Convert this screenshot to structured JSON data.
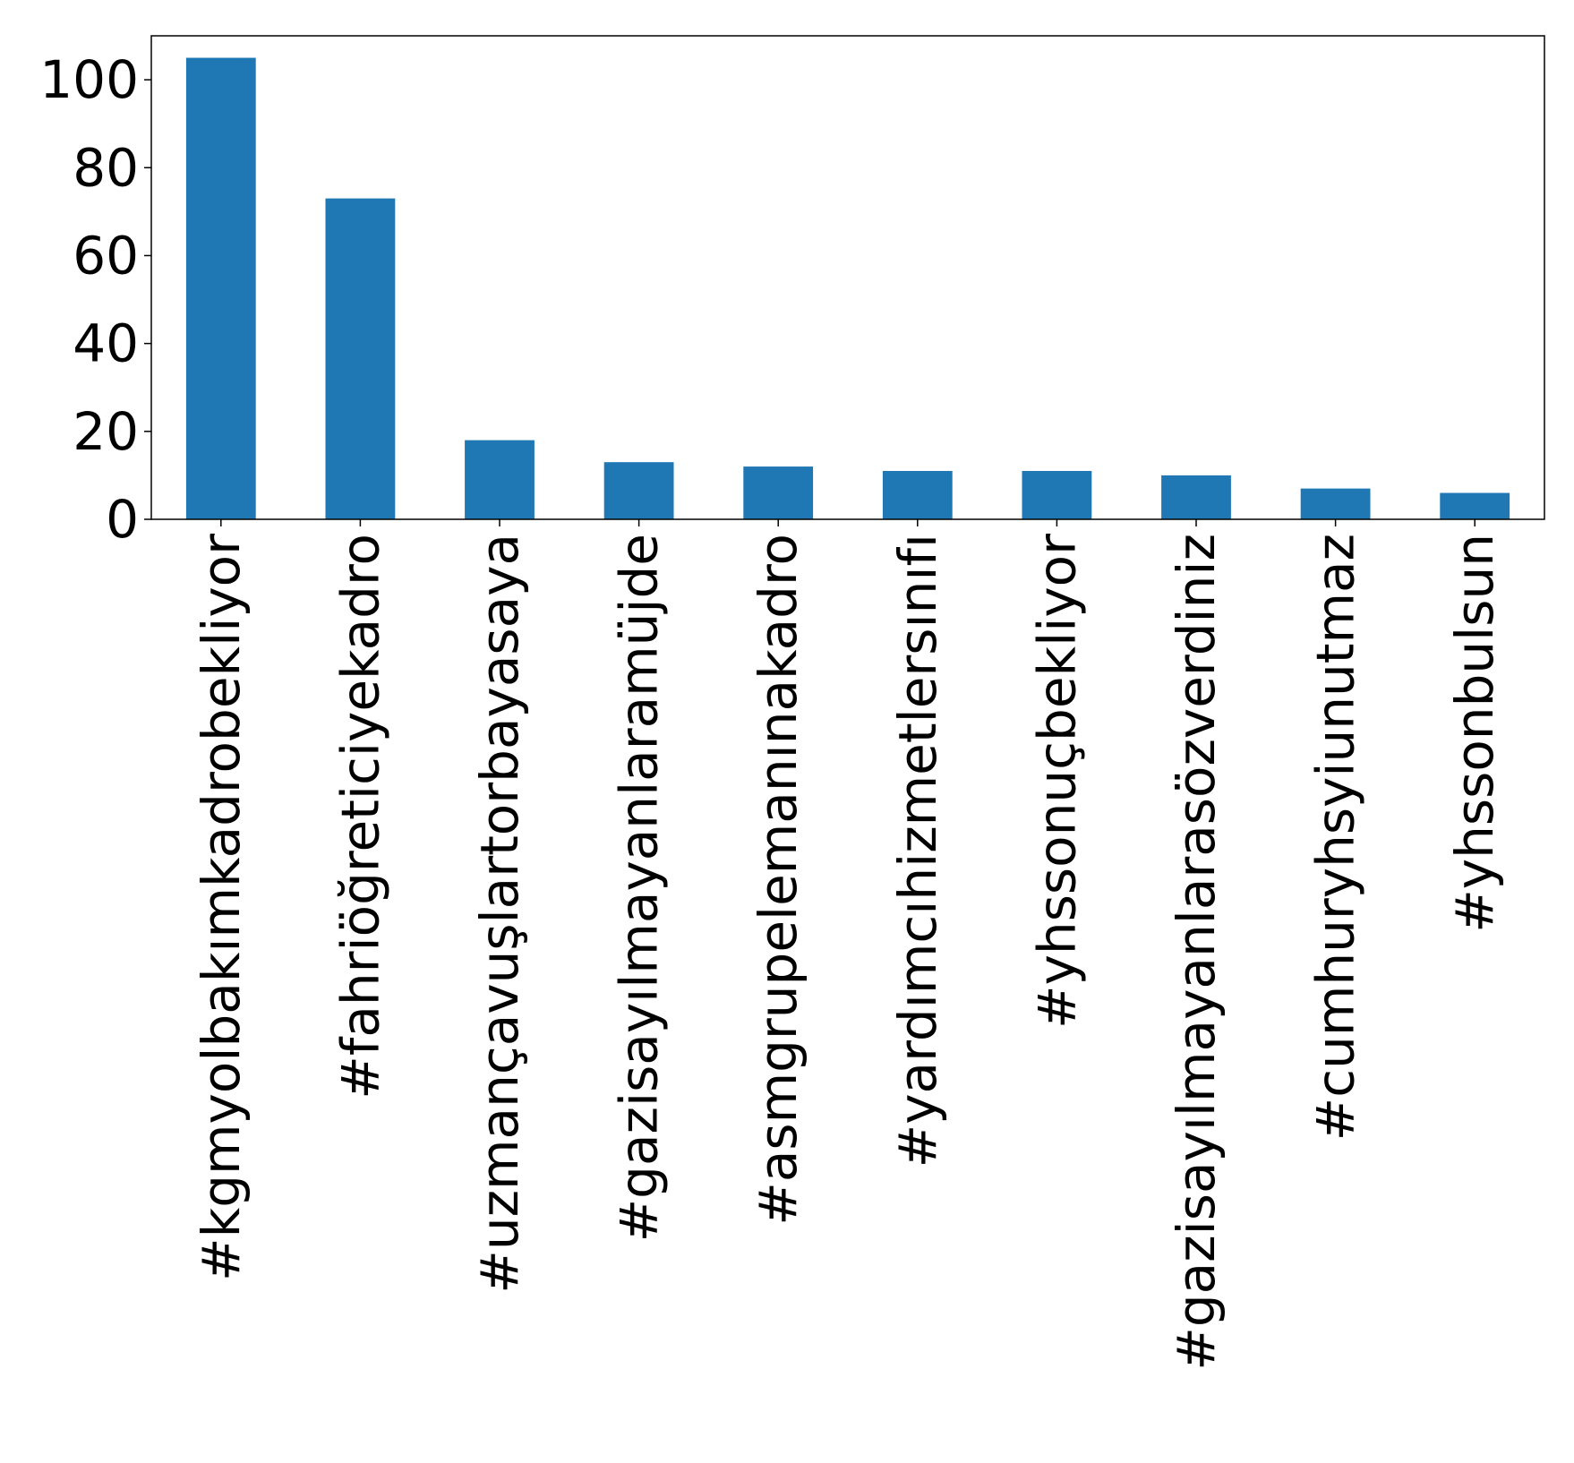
{
  "chart_data": {
    "type": "bar",
    "title": "",
    "xlabel": "",
    "ylabel": "",
    "categories": [
      "#kgmyolbakımkadrobekliyor",
      "#fahriöğreticiyekadro",
      "#uzmançavuşlartorbayasaya",
      "#gazisayılmayanlaramüjde",
      "#asmgrupelemanınakadro",
      "#yardımcıhizmetlersınıfı",
      "#yhssonuçbekliyor",
      "#gazisayılmayanlarasözverdiniz",
      "#cumhuryhsyiunutmaz",
      "#yhssonbulsun"
    ],
    "values": [
      105,
      73,
      18,
      13,
      12,
      11,
      11,
      10,
      7,
      6
    ],
    "ylim": [
      0,
      110
    ],
    "yticks": [
      0,
      20,
      40,
      60,
      80,
      100
    ],
    "grid": false,
    "bar_color": "#1f77b4"
  }
}
